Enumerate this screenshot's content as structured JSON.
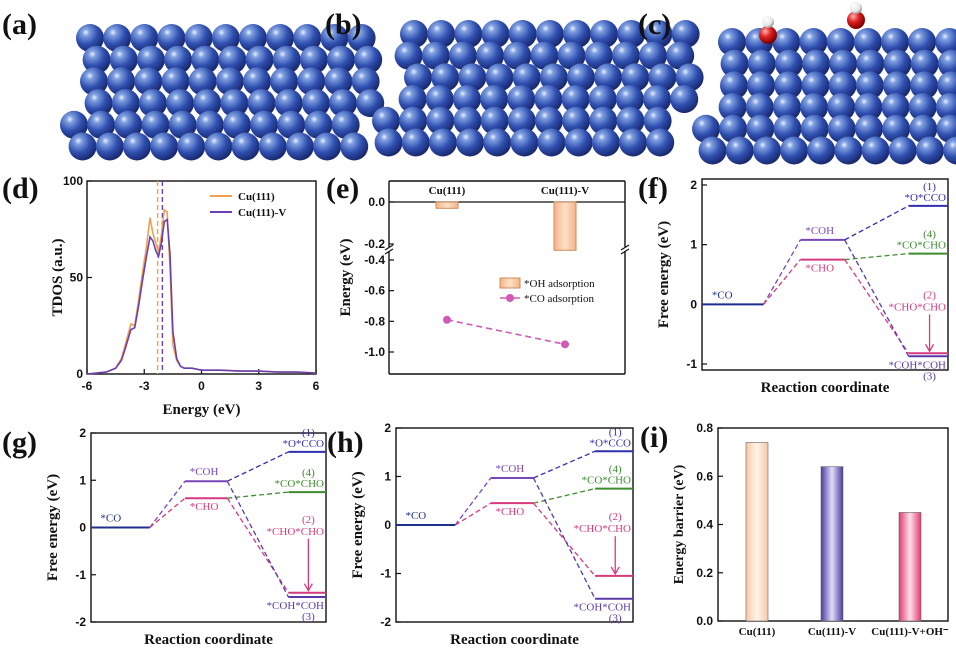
{
  "chart_data": [
    {
      "panel": "(a)",
      "type": "other"
    },
    {
      "panel": "(b)",
      "type": "other"
    },
    {
      "panel": "(c)",
      "type": "other"
    },
    {
      "panel": "(d)",
      "type": "line",
      "xlabel": "Energy (eV)",
      "ylabel": "TDOS (a.u.)",
      "xlim": [
        -6,
        6
      ],
      "ylim": [
        0,
        100
      ],
      "xticks": [
        "-6",
        "-3",
        "0",
        "3",
        "6"
      ],
      "yticks": [
        "0",
        "50",
        "100"
      ],
      "legend_position": "top-right",
      "vlines": [
        {
          "x": -2.3,
          "color": "#f0a050"
        },
        {
          "x": -2.05,
          "color": "#6a3fb0"
        }
      ],
      "series": [
        {
          "name": "Cu(111)",
          "color": "#f0a050",
          "x": [
            -6,
            -5,
            -4.5,
            -4.2,
            -4,
            -3.7,
            -3.5,
            -3.3,
            -3.1,
            -2.9,
            -2.7,
            -2.55,
            -2.4,
            -2.25,
            -2.1,
            -1.95,
            -1.8,
            -1.65,
            -1.5,
            -1.3,
            -1.1,
            -0.9,
            -0.5,
            0,
            1,
            2,
            3,
            4,
            5,
            6
          ],
          "y": [
            0,
            1,
            3,
            8,
            15,
            26,
            25,
            38,
            52,
            65,
            81,
            73,
            68,
            63,
            72,
            85,
            84,
            55,
            15,
            7,
            4,
            3,
            3,
            2,
            2,
            1.5,
            1.5,
            1,
            1,
            0.5
          ]
        },
        {
          "name": "Cu(111)-V",
          "color": "#6a3fb0",
          "x": [
            -6,
            -5,
            -4.5,
            -4.2,
            -4,
            -3.7,
            -3.5,
            -3.3,
            -3.1,
            -2.9,
            -2.7,
            -2.55,
            -2.4,
            -2.25,
            -2.1,
            -1.95,
            -1.8,
            -1.65,
            -1.5,
            -1.3,
            -1.1,
            -0.9,
            -0.5,
            0,
            1,
            2,
            3,
            4,
            5,
            6
          ],
          "y": [
            0,
            1,
            3,
            7,
            13,
            23,
            24,
            35,
            48,
            60,
            71,
            69,
            64,
            61,
            68,
            79,
            80,
            62,
            22,
            8,
            4,
            3,
            3,
            2,
            2,
            1.5,
            1.5,
            1,
            1,
            0.5
          ]
        }
      ]
    },
    {
      "panel": "(e)",
      "type": "bar",
      "ylabel": "Energy (eV)",
      "categories": [
        "Cu(111)",
        "Cu(111)-V"
      ],
      "upper_yticks": [
        "0.0",
        "-0.2"
      ],
      "lower_yticks": [
        "-0.4",
        "-0.6",
        "-0.8",
        "-1.0"
      ],
      "series": [
        {
          "name": "*OH adsorption",
          "kind": "bar",
          "color": "#f6c49c",
          "values": [
            -0.03,
            -0.23
          ]
        },
        {
          "name": "*CO adsorption",
          "kind": "line",
          "color": "#d05ab8",
          "values": [
            -0.79,
            -0.95
          ]
        }
      ]
    },
    {
      "panel": "(f)",
      "type": "line",
      "xlabel": "Reaction coordinate",
      "ylabel": "Free energy (eV)",
      "ylim": [
        -1.1,
        2.1
      ],
      "yticks": [
        "-1",
        "0",
        "1",
        "2"
      ],
      "levels": [
        {
          "text": "*CO",
          "value": 0,
          "color": "#1f2f8f"
        },
        {
          "text": "*COH",
          "value": 1.08,
          "color": "#7a46b8"
        },
        {
          "text": "*CHO",
          "value": 0.75,
          "color": "#d6397f"
        },
        {
          "text": "*O*CCO",
          "number": "(1)",
          "value": 1.65,
          "color": "#2f2fb0"
        },
        {
          "text": "*CO*CHO",
          "number": "(4)",
          "value": 0.85,
          "color": "#3c8c2f"
        },
        {
          "text": "*CHO*CHO",
          "number": "(2)",
          "value": -0.82,
          "color": "#d6397f"
        },
        {
          "text": "*COH*COH",
          "number": "(3)",
          "value": -0.87,
          "color": "#5a3aa8"
        }
      ]
    },
    {
      "panel": "(g)",
      "type": "line",
      "xlabel": "Reaction coordinate",
      "ylabel": "Free energy (eV)",
      "ylim": [
        -2,
        2
      ],
      "yticks": [
        "-2",
        "-1",
        "0",
        "1",
        "2"
      ],
      "levels": [
        {
          "text": "*CO",
          "value": 0,
          "color": "#1f2f8f"
        },
        {
          "text": "*COH",
          "value": 0.98,
          "color": "#7a46b8"
        },
        {
          "text": "*CHO",
          "value": 0.62,
          "color": "#d6397f"
        },
        {
          "text": "*O*CCO",
          "number": "(1)",
          "value": 1.6,
          "color": "#2f2fb0"
        },
        {
          "text": "*CO*CHO",
          "number": "(4)",
          "value": 0.75,
          "color": "#3c8c2f"
        },
        {
          "text": "*CHO*CHO",
          "number": "(2)",
          "value": -1.38,
          "color": "#d6397f"
        },
        {
          "text": "*COH*COH",
          "number": "(3)",
          "value": -1.47,
          "color": "#5a3aa8"
        }
      ]
    },
    {
      "panel": "(h)",
      "type": "line",
      "xlabel": "Reaction coordinate",
      "ylabel": "Free energy (eV)",
      "ylim": [
        -2,
        2
      ],
      "yticks": [
        "-2",
        "-1",
        "0",
        "1",
        "2"
      ],
      "levels": [
        {
          "text": "*CO",
          "value": 0,
          "color": "#1f2f8f"
        },
        {
          "text": "*COH",
          "value": 0.97,
          "color": "#7a46b8"
        },
        {
          "text": "*CHO",
          "value": 0.45,
          "color": "#d6397f"
        },
        {
          "text": "*O*CCO",
          "number": "(1)",
          "value": 1.52,
          "color": "#2f2fb0"
        },
        {
          "text": "*CO*CHO",
          "number": "(4)",
          "value": 0.75,
          "color": "#3c8c2f"
        },
        {
          "text": "*CHO*CHO",
          "number": "(2)",
          "value": -1.05,
          "color": "#d6397f"
        },
        {
          "text": "*COH*COH",
          "number": "(3)",
          "value": -1.52,
          "color": "#5a3aa8"
        }
      ]
    },
    {
      "panel": "(i)",
      "type": "bar",
      "ylabel": "Energy barrier (eV)",
      "ylim": [
        0,
        0.8
      ],
      "yticks": [
        "0.0",
        "0.2",
        "0.4",
        "0.6",
        "0.8"
      ],
      "categories": [
        "Cu(111)",
        "Cu(111)-V",
        "Cu(111)-V+OH⁻"
      ],
      "values": [
        0.74,
        0.64,
        0.45
      ],
      "colors": [
        "#f7cfae",
        "#8b72c8",
        "#e8557e"
      ]
    }
  ]
}
